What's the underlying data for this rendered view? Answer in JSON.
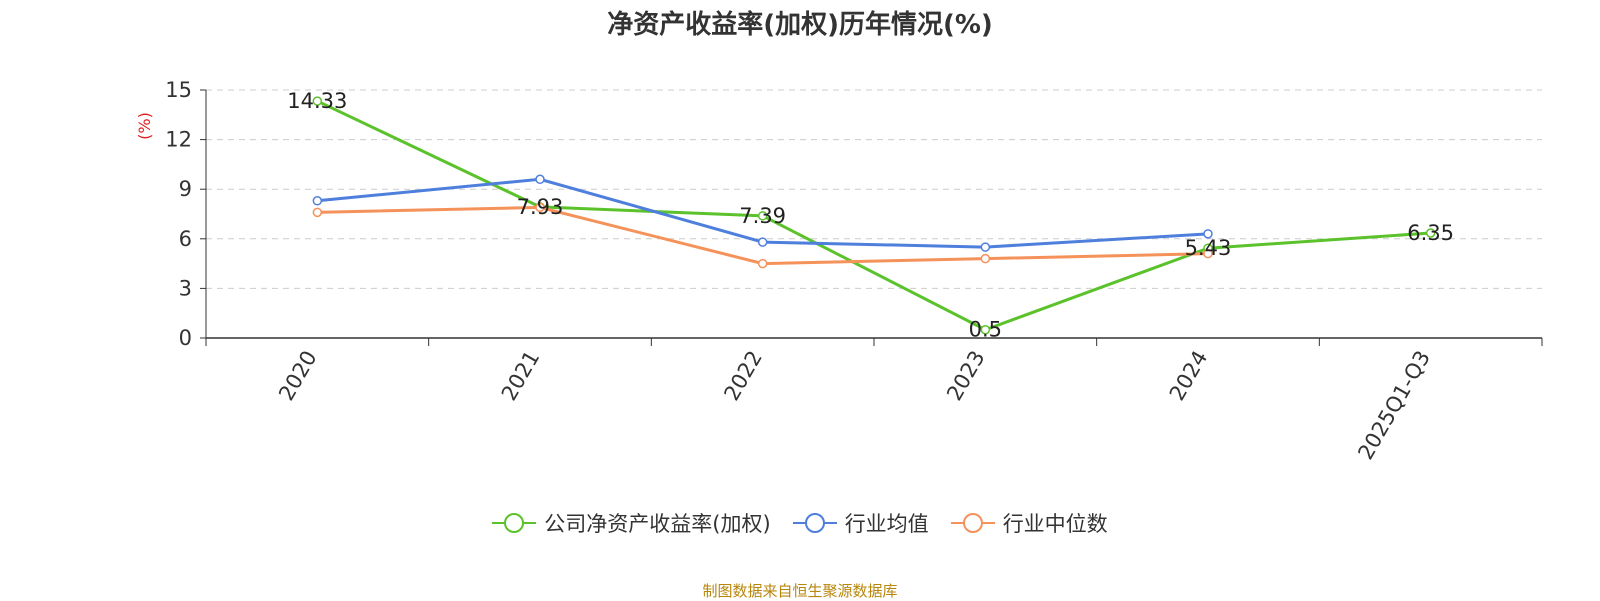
{
  "chart_data": {
    "type": "line",
    "title": "净资产收益率(加权)历年情况(%)",
    "ylabel": "(%)",
    "xlabel": "",
    "categories": [
      "2020",
      "2021",
      "2022",
      "2023",
      "2024",
      "2025Q1-Q3"
    ],
    "ylim": [
      0,
      15
    ],
    "yticks": [
      0,
      3,
      6,
      9,
      12,
      15
    ],
    "grid": true,
    "legend_position": "bottom",
    "series": [
      {
        "name": "公司净资产收益率(加权)",
        "color": "#5cc22c",
        "values": [
          14.33,
          7.93,
          7.39,
          0.5,
          5.43,
          6.35
        ],
        "labels": [
          "14.33",
          "7.93",
          "7.39",
          "0.5",
          "5.43",
          "6.35"
        ]
      },
      {
        "name": "行业均值",
        "color": "#4f7fdc",
        "values": [
          8.3,
          9.6,
          5.8,
          5.5,
          6.3,
          null
        ]
      },
      {
        "name": "行业中位数",
        "color": "#f5925a",
        "values": [
          7.6,
          7.9,
          4.5,
          4.8,
          5.1,
          null
        ]
      }
    ]
  },
  "source": "制图数据来自恒生聚源数据库"
}
